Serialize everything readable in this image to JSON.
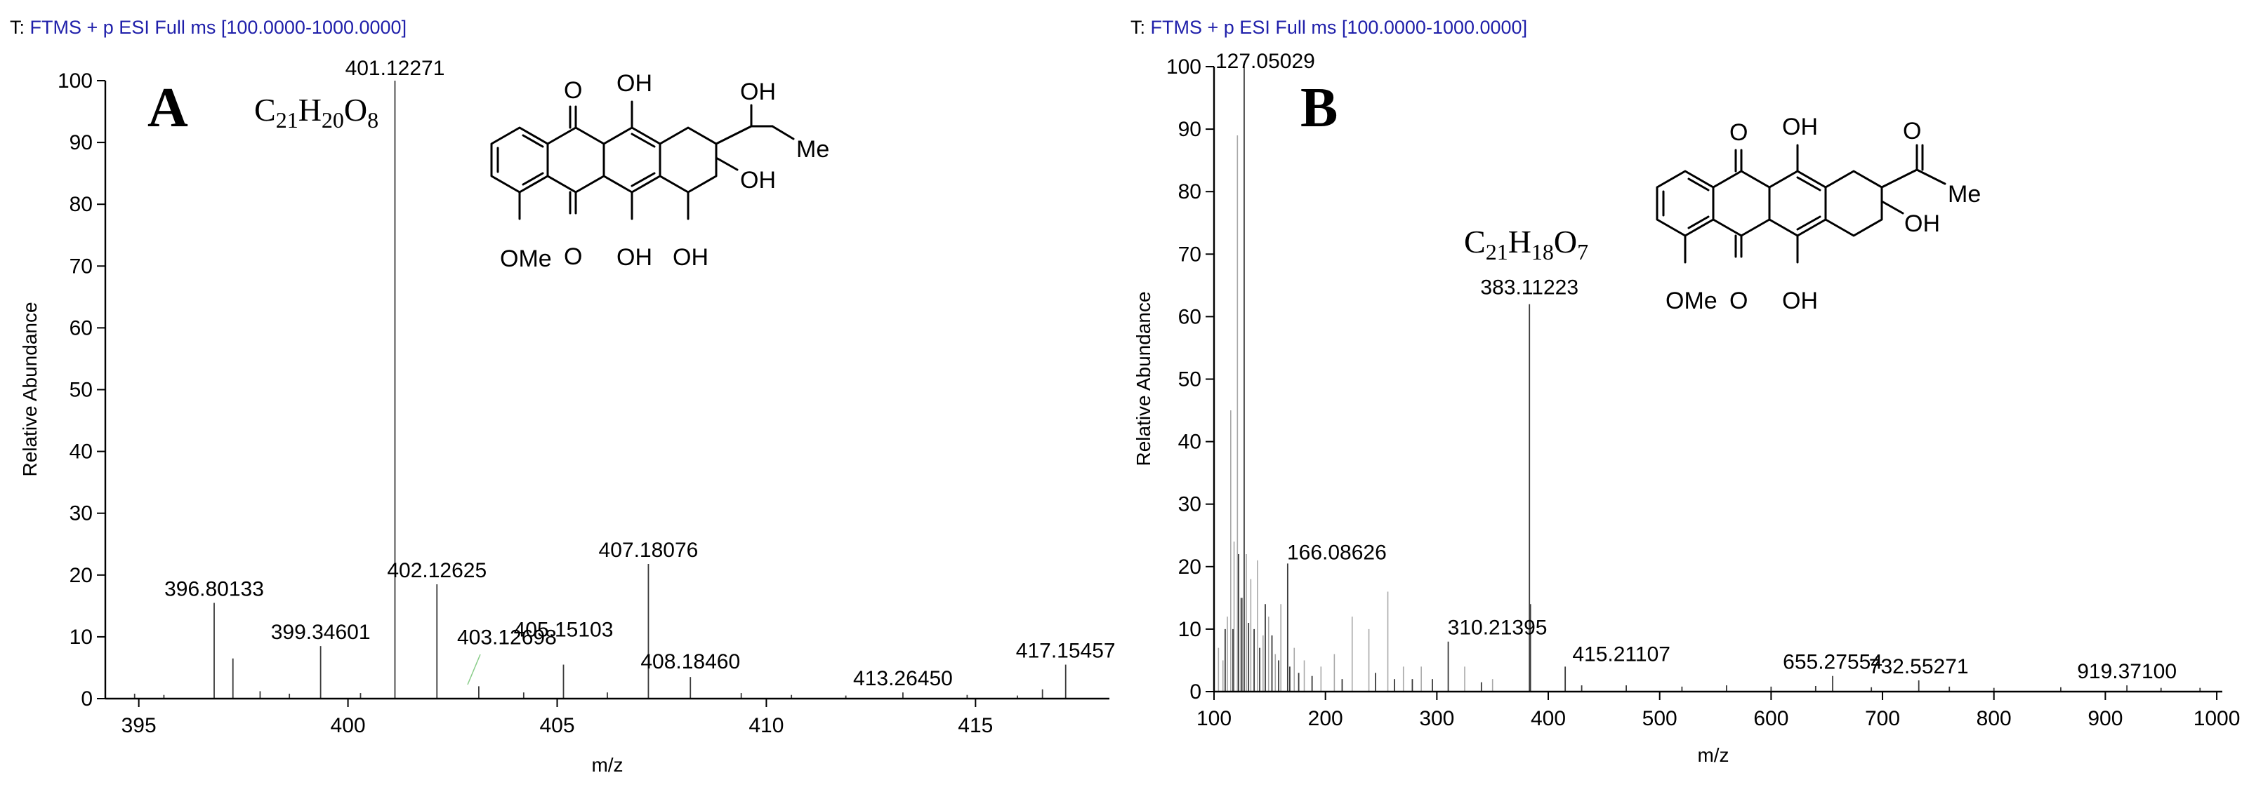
{
  "chart_data": [
    {
      "type": "bar",
      "panel_label": "A",
      "header": {
        "prefix": "T:",
        "scan": "FTMS + p ESI Full ms [100.0000-1000.0000]"
      },
      "formula": {
        "parts": [
          [
            "C",
            ""
          ],
          [
            "21",
            "sub"
          ],
          [
            "H",
            ""
          ],
          [
            "20",
            "sub"
          ],
          [
            "O",
            ""
          ],
          [
            "8",
            "sub"
          ]
        ]
      },
      "xlabel": "m/z",
      "ylabel": "Relative Abundance",
      "xlim": [
        394.2,
        418.2
      ],
      "ylim": [
        0,
        100
      ],
      "x_ticks": [
        395,
        400,
        405,
        410,
        415
      ],
      "y_ticks": [
        0,
        10,
        20,
        30,
        40,
        50,
        60,
        70,
        80,
        90,
        100
      ],
      "labeled_peaks": [
        {
          "x": 401.12271,
          "y": 100,
          "label": "401.12271"
        },
        {
          "x": 396.80133,
          "y": 15.5,
          "label": "396.80133"
        },
        {
          "x": 399.34601,
          "y": 8.5,
          "label": "399.34601"
        },
        {
          "x": 402.12625,
          "y": 18.5,
          "label": "402.12625"
        },
        {
          "x": 403.12698,
          "y": 2,
          "label": "403.12698"
        },
        {
          "x": 405.15103,
          "y": 5.5,
          "label": "405.15103"
        },
        {
          "x": 407.18076,
          "y": 21.8,
          "label": "407.18076"
        },
        {
          "x": 408.1846,
          "y": 3.5,
          "label": "408.18460"
        },
        {
          "x": 413.2645,
          "y": 1,
          "label": "413.26450"
        },
        {
          "x": 417.15457,
          "y": 5.5,
          "label": "417.15457"
        }
      ],
      "minor_peaks": [
        {
          "x": 394.9,
          "y": 0.8
        },
        {
          "x": 395.6,
          "y": 0.6
        },
        {
          "x": 397.25,
          "y": 6.5
        },
        {
          "x": 397.9,
          "y": 1.2
        },
        {
          "x": 398.6,
          "y": 0.8
        },
        {
          "x": 400.3,
          "y": 0.9
        },
        {
          "x": 404.2,
          "y": 1.0
        },
        {
          "x": 406.2,
          "y": 1.0
        },
        {
          "x": 409.4,
          "y": 0.9
        },
        {
          "x": 410.6,
          "y": 0.6
        },
        {
          "x": 411.9,
          "y": 0.5
        },
        {
          "x": 414.8,
          "y": 0.6
        },
        {
          "x": 416.0,
          "y": 0.5
        },
        {
          "x": 416.6,
          "y": 1.5
        }
      ],
      "structure": {
        "labels": [
          "OH",
          "OH",
          "Me",
          "OH",
          "OMe",
          "O",
          "O",
          "OH",
          "OH"
        ]
      }
    },
    {
      "type": "bar",
      "panel_label": "B",
      "header": {
        "prefix": "T:",
        "scan": "FTMS + p ESI Full ms [100.0000-1000.0000]"
      },
      "formula": {
        "parts": [
          [
            "C",
            ""
          ],
          [
            "21",
            "sub"
          ],
          [
            "H",
            ""
          ],
          [
            "18",
            "sub"
          ],
          [
            "O",
            ""
          ],
          [
            "7",
            "sub"
          ]
        ]
      },
      "xlabel": "m/z",
      "ylabel": "Relative Abundance",
      "xlim": [
        100,
        1005
      ],
      "ylim": [
        0,
        100
      ],
      "x_ticks": [
        100,
        200,
        300,
        400,
        500,
        600,
        700,
        800,
        900,
        1000
      ],
      "y_ticks": [
        0,
        10,
        20,
        30,
        40,
        50,
        60,
        70,
        80,
        90,
        100
      ],
      "labeled_peaks": [
        {
          "x": 127.05029,
          "y": 100,
          "label": "127.05029"
        },
        {
          "x": 166.08626,
          "y": 20.5,
          "label": "166.08626"
        },
        {
          "x": 310.21395,
          "y": 8,
          "label": "310.21395"
        },
        {
          "x": 383.11223,
          "y": 62,
          "label": "383.11223"
        },
        {
          "x": 415.21107,
          "y": 4,
          "label": "415.21107"
        },
        {
          "x": 655.27554,
          "y": 2.5,
          "label": "655.27554"
        },
        {
          "x": 732.55271,
          "y": 1.8,
          "label": "732.55271"
        },
        {
          "x": 919.371,
          "y": 1.0,
          "label": "919.37100"
        }
      ],
      "grey_peaks": [
        {
          "x": 104,
          "y": 7
        },
        {
          "x": 108,
          "y": 5
        },
        {
          "x": 112,
          "y": 12
        },
        {
          "x": 115,
          "y": 45
        },
        {
          "x": 118,
          "y": 24
        },
        {
          "x": 121,
          "y": 89
        },
        {
          "x": 124,
          "y": 15
        },
        {
          "x": 129,
          "y": 22
        },
        {
          "x": 133,
          "y": 18
        },
        {
          "x": 139,
          "y": 21
        },
        {
          "x": 144,
          "y": 9
        },
        {
          "x": 149,
          "y": 12
        },
        {
          "x": 155,
          "y": 6
        },
        {
          "x": 160,
          "y": 14
        },
        {
          "x": 172,
          "y": 7
        },
        {
          "x": 181,
          "y": 5
        },
        {
          "x": 196,
          "y": 4
        },
        {
          "x": 208,
          "y": 6
        },
        {
          "x": 224,
          "y": 12
        },
        {
          "x": 239,
          "y": 10
        },
        {
          "x": 256,
          "y": 16
        },
        {
          "x": 270,
          "y": 4
        },
        {
          "x": 286,
          "y": 4
        },
        {
          "x": 325,
          "y": 4
        },
        {
          "x": 350,
          "y": 2
        }
      ],
      "dark_peaks": [
        {
          "x": 110,
          "y": 10
        },
        {
          "x": 117,
          "y": 10
        },
        {
          "x": 122,
          "y": 22
        },
        {
          "x": 125,
          "y": 15
        },
        {
          "x": 131,
          "y": 11
        },
        {
          "x": 136,
          "y": 10
        },
        {
          "x": 141,
          "y": 7
        },
        {
          "x": 146,
          "y": 14
        },
        {
          "x": 152,
          "y": 9
        },
        {
          "x": 158,
          "y": 5
        },
        {
          "x": 168,
          "y": 4
        },
        {
          "x": 176,
          "y": 3
        },
        {
          "x": 188,
          "y": 2.5
        },
        {
          "x": 215,
          "y": 2
        },
        {
          "x": 245,
          "y": 3
        },
        {
          "x": 262,
          "y": 2
        },
        {
          "x": 278,
          "y": 2
        },
        {
          "x": 296,
          "y": 2
        },
        {
          "x": 340,
          "y": 1.5
        },
        {
          "x": 384,
          "y": 14
        },
        {
          "x": 430,
          "y": 1
        },
        {
          "x": 470,
          "y": 1
        },
        {
          "x": 520,
          "y": 0.8
        },
        {
          "x": 560,
          "y": 1
        },
        {
          "x": 600,
          "y": 0.8
        },
        {
          "x": 640,
          "y": 0.9
        },
        {
          "x": 690,
          "y": 0.7
        },
        {
          "x": 760,
          "y": 0.8
        },
        {
          "x": 800,
          "y": 0.6
        },
        {
          "x": 860,
          "y": 0.7
        },
        {
          "x": 950,
          "y": 0.6
        },
        {
          "x": 985,
          "y": 0.6
        }
      ],
      "structure": {
        "labels": [
          "O",
          "OH",
          "O",
          "Me",
          "OH",
          "OMe",
          "O",
          "OH"
        ]
      }
    }
  ]
}
